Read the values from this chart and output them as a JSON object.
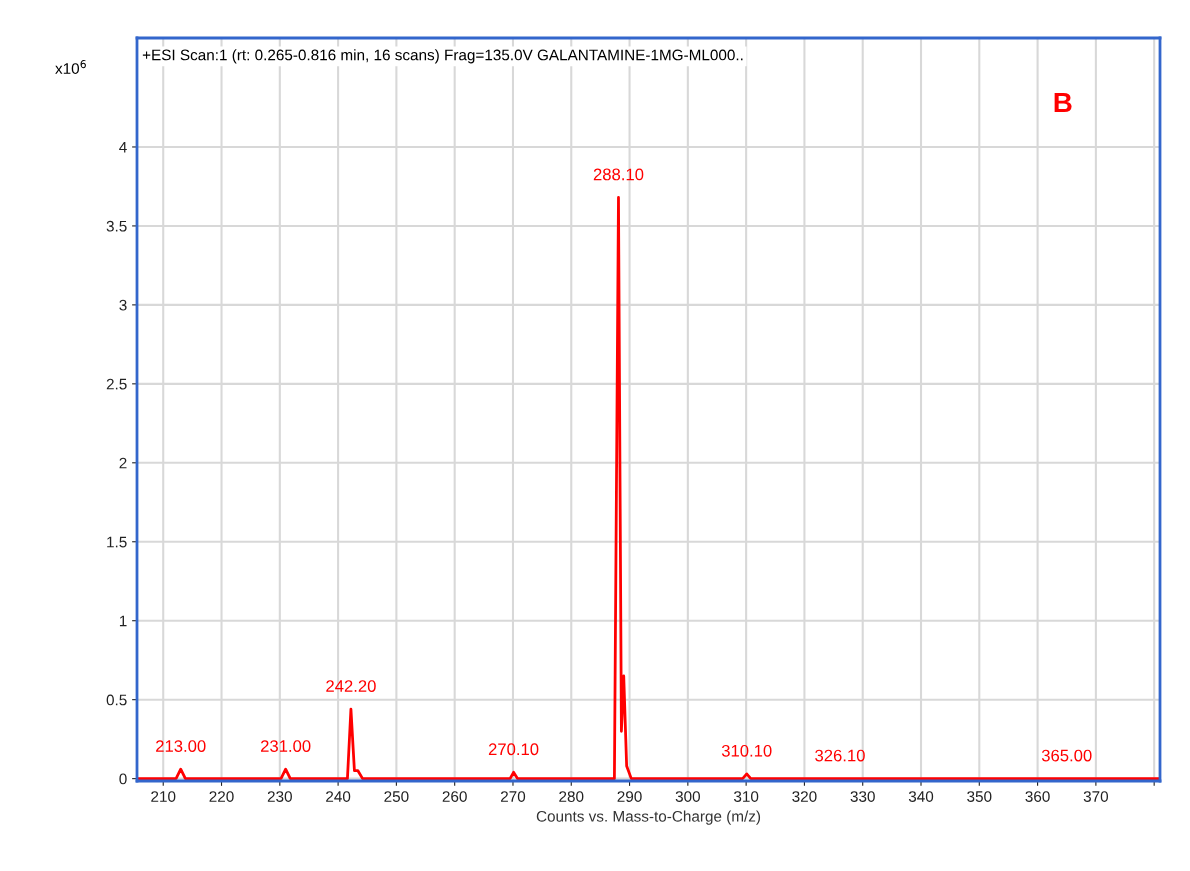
{
  "chart_data": {
    "type": "line",
    "title": "+ESI Scan:1 (rt: 0.265-0.816 min, 16 scans) Frag=135.0V GALANTAMINE-1MG-ML000..",
    "xlabel": "Counts vs. Mass-to-Charge (m/z)",
    "ylabel": "x10$^{6}$",
    "series": [
      {
        "color": "#ff0000",
        "x": [
          205.5,
          212.2,
          213,
          213.8,
          230.2,
          231,
          231.8,
          241.6,
          242.2,
          242.8,
          243.4,
          244.2,
          269.5,
          270.1,
          270.8,
          287.4,
          288.1,
          288.6,
          289.0,
          289.5,
          290.3,
          309.4,
          310.1,
          310.8,
          381
        ],
        "values": [
          0,
          0,
          0.06,
          0,
          0,
          0.06,
          0,
          0,
          0.44,
          0.05,
          0.05,
          0,
          0,
          0.04,
          0,
          0,
          3.68,
          0.3,
          0.65,
          0.08,
          0,
          0,
          0.03,
          0,
          0
        ]
      }
    ],
    "annotations": [
      {
        "text": "213.00",
        "x": 213,
        "y": 0.06
      },
      {
        "text": "231.00",
        "x": 231,
        "y": 0.06
      },
      {
        "text": "242.20",
        "x": 242.2,
        "y": 0.44
      },
      {
        "text": "270.10",
        "x": 270.1,
        "y": 0.04
      },
      {
        "text": "288.10",
        "x": 288.1,
        "y": 3.68
      },
      {
        "text": "310.10",
        "x": 310.1,
        "y": 0.03
      },
      {
        "text": "326.10",
        "x": 326.1,
        "y": 0
      },
      {
        "text": "365.00",
        "x": 365,
        "y": 0
      },
      "B"
    ],
    "xlim": [
      205.5,
      381
    ],
    "ylim": [
      -0.015,
      4.69
    ],
    "xticks": [
      210,
      220,
      230,
      240,
      250,
      260,
      270,
      280,
      290,
      300,
      310,
      320,
      330,
      340,
      350,
      360,
      370,
      {
        "value": 380,
        "label": null
      }
    ],
    "yticks": [
      0,
      0.5,
      1,
      1.5,
      2,
      2.5,
      3,
      3.5,
      4
    ],
    "grid": true,
    "legend": false,
    "marker": "none",
    "line_style": "solid"
  }
}
